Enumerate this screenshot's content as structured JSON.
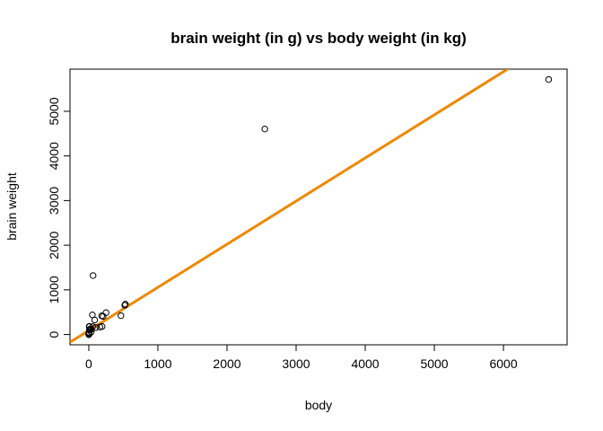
{
  "chart_data": {
    "type": "scatter",
    "title": "brain weight (in g) vs body weight (in kg)",
    "xlabel": "body",
    "ylabel": "brain weight",
    "xlim": [
      -272,
      6921
    ],
    "ylim": [
      -230,
      5944
    ],
    "x_ticks": [
      0,
      1000,
      2000,
      3000,
      4000,
      5000,
      6000
    ],
    "y_ticks": [
      0,
      1000,
      2000,
      3000,
      4000,
      5000
    ],
    "x_tick_labels": [
      "0",
      "1000",
      "2000",
      "3000",
      "4000",
      "5000",
      "6000"
    ],
    "y_tick_labels": [
      "0",
      "1000",
      "2000",
      "3000",
      "4000",
      "5000"
    ],
    "grid": false,
    "legend": "none",
    "series": [
      {
        "x": [
          3.4,
          0.5,
          1.3,
          465,
          36,
          27.7,
          14.8,
          1.0,
          0.8,
          85,
          2547,
          187,
          521,
          10,
          3.3,
          6.7,
          0.75,
          3.5,
          4.2,
          0.3,
          207,
          62,
          6654,
          3.4,
          6.8,
          35,
          0.1,
          1.4,
          250,
          160,
          0.05,
          10.5,
          55.5,
          100,
          0.5,
          192,
          52,
          4.2,
          2.0,
          0.3,
          529
        ],
        "y": [
          44,
          10,
          12,
          423,
          119,
          115,
          98,
          6,
          6,
          325,
          4603,
          419,
          655,
          115,
          26,
          180,
          12,
          40,
          50,
          1,
          406,
          1320,
          5712,
          4,
          179,
          56,
          1,
          12.5,
          490,
          169,
          0.3,
          180,
          175,
          157,
          20,
          180,
          440,
          39,
          12,
          2,
          680
        ],
        "color": "#000000"
      }
    ],
    "fit_line": {
      "intercept": 91,
      "slope": 0.966,
      "color": "#ee8800"
    }
  }
}
